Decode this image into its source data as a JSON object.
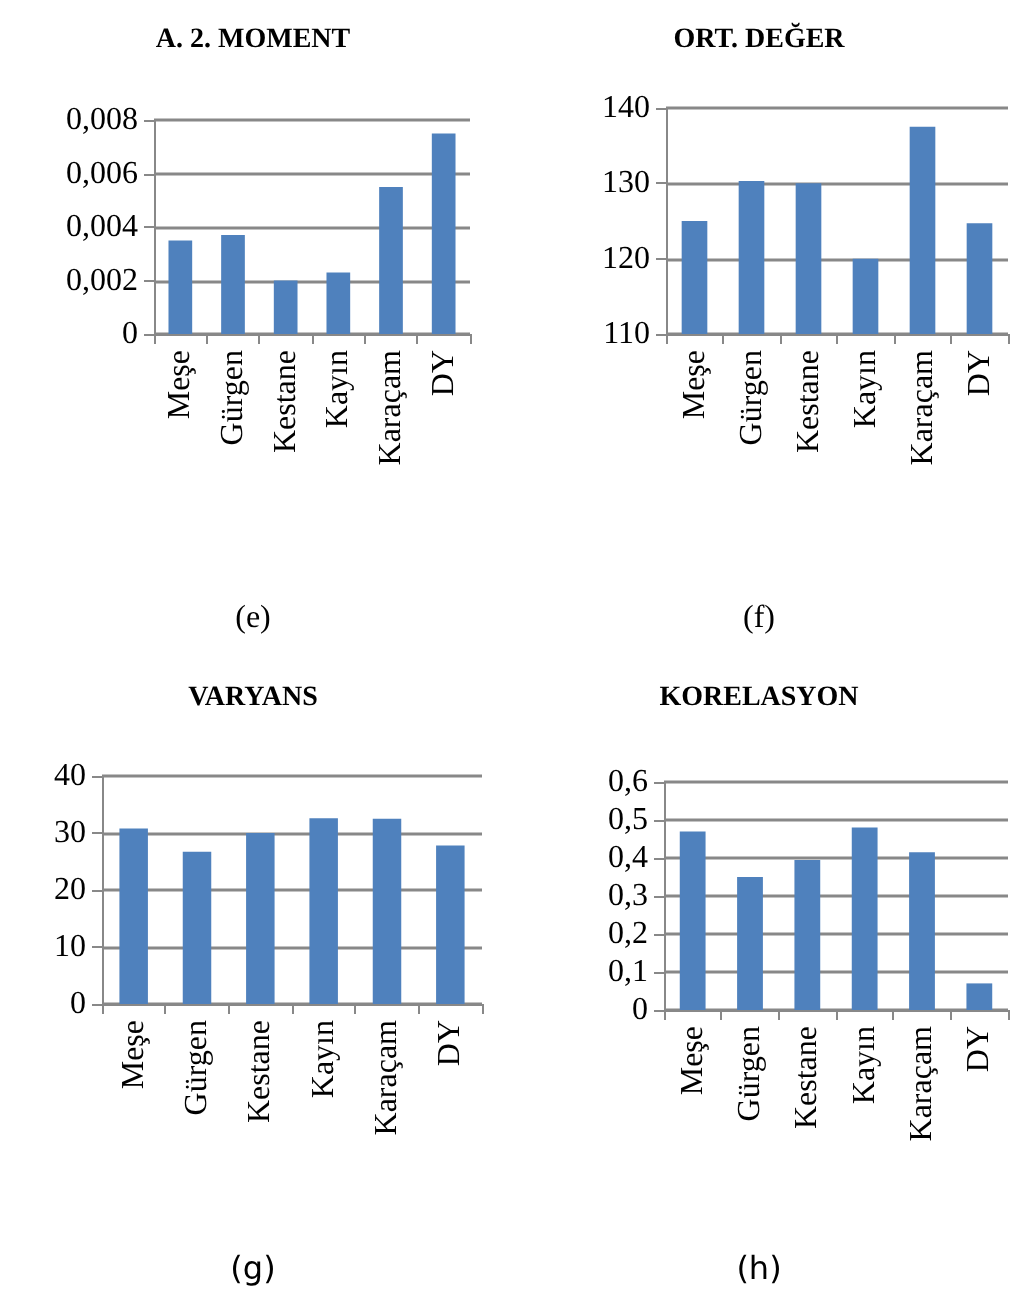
{
  "chart_data": [
    {
      "type": "bar",
      "title": "A. 2. MOMENT",
      "categories": [
        "Meşe",
        "Gürgen",
        "Kestane",
        "Kayın",
        "Karaçam",
        "DY"
      ],
      "values": [
        0.0035,
        0.0037,
        0.002,
        0.0023,
        0.0055,
        0.0075
      ],
      "color": "#4f81bd",
      "ylim": [
        0,
        0.008
      ],
      "yticks": [
        0,
        {
          "value": 0.002,
          "label": "0,002"
        },
        {
          "value": 0.004,
          "label": "0,004"
        },
        {
          "value": 0.006,
          "label": "0,006"
        },
        {
          "value": 0.008,
          "label": "0,008"
        }
      ],
      "grid": "y",
      "annotations": [
        "(e)"
      ]
    },
    {
      "type": "bar",
      "title": "ORT. DEĞER",
      "categories": [
        "Meşe",
        "Gürgen",
        "Kestane",
        "Kayın",
        "Karaçam",
        "DY"
      ],
      "values": [
        125,
        130.3,
        130,
        120,
        137.5,
        124.7
      ],
      "color": "#4f81bd",
      "ylim": [
        110,
        140
      ],
      "yticks": [
        110,
        120,
        130,
        140
      ],
      "grid": "y",
      "annotations": [
        "(f)"
      ]
    },
    {
      "type": "bar",
      "title": "VARYANS",
      "categories": [
        "Meşe",
        "Gürgen",
        "Kestane",
        "Kayın",
        "Karaçam",
        "DY"
      ],
      "values": [
        30.8,
        26.7,
        30,
        32.6,
        32.5,
        27.8
      ],
      "color": "#4f81bd",
      "ylim": [
        0,
        40
      ],
      "yticks": [
        0,
        10,
        20,
        30,
        40
      ],
      "grid": "y",
      "annotations": [
        "(g)"
      ]
    },
    {
      "type": "bar",
      "title": "KORELASYON",
      "categories": [
        "Meşe",
        "Gürgen",
        "Kestane",
        "Kayın",
        "Karaçam",
        "DY"
      ],
      "values": [
        0.47,
        0.35,
        0.395,
        0.48,
        0.415,
        0.07
      ],
      "color": "#4f81bd",
      "ylim": [
        0,
        0.6
      ],
      "yticks": [
        0,
        {
          "value": 0.1,
          "label": "0,1"
        },
        {
          "value": 0.2,
          "label": "0,2"
        },
        {
          "value": 0.3,
          "label": "0,3"
        },
        {
          "value": 0.4,
          "label": "0,4"
        },
        {
          "value": 0.5,
          "label": "0,5"
        },
        {
          "value": 0.6,
          "label": "0,6"
        }
      ],
      "grid": "y",
      "annotations": [
        "(h)"
      ]
    }
  ]
}
